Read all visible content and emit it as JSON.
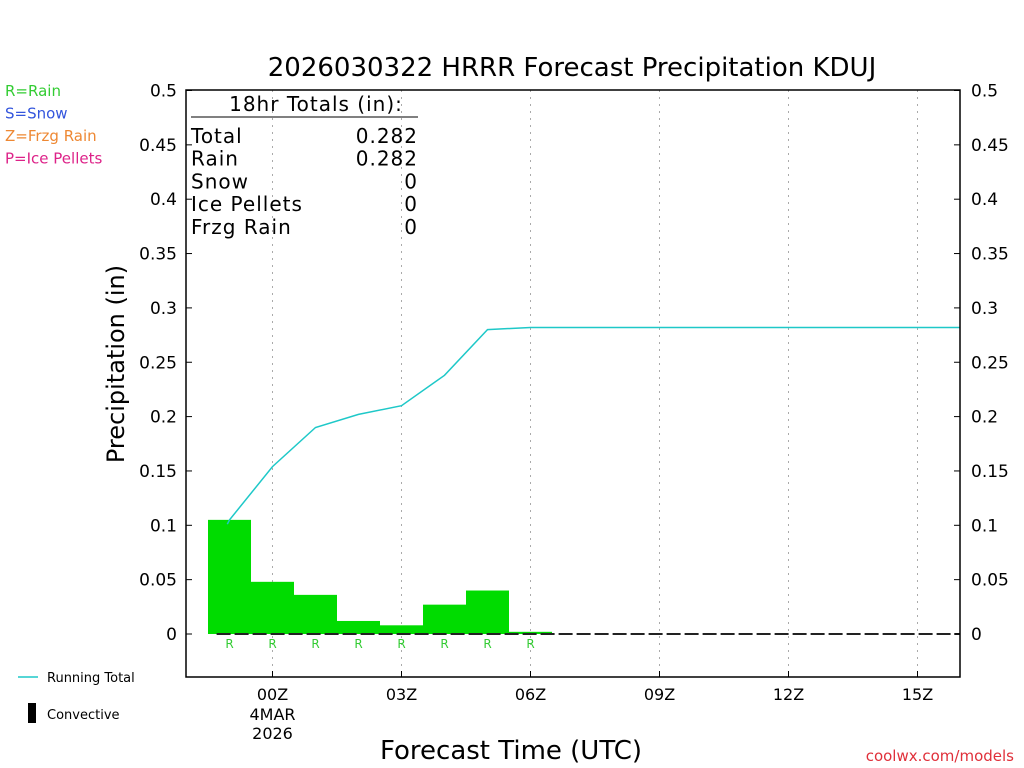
{
  "chart_data": {
    "type": "bar",
    "title": "2026030322 HRRR Forecast Precipitation KDUJ",
    "xlabel": "Forecast Time (UTC)",
    "ylabel": "Precipitation (in)",
    "ylim": [
      -0.04,
      0.5
    ],
    "yticks": [
      0,
      0.05,
      0.1,
      0.15,
      0.2,
      0.25,
      0.3,
      0.35,
      0.4,
      0.45,
      0.5
    ],
    "ytick_labels": [
      "0",
      "0.05",
      "0.1",
      "0.15",
      "0.2",
      "0.25",
      "0.3",
      "0.35",
      "0.4",
      "0.45",
      "0.5"
    ],
    "xlim_hours": [
      -2,
      16
    ],
    "xticks": [
      {
        "hour": 0,
        "label": "00Z",
        "sub1": "4MAR",
        "sub2": "2026"
      },
      {
        "hour": 3,
        "label": "03Z",
        "sub1": "",
        "sub2": ""
      },
      {
        "hour": 6,
        "label": "06Z",
        "sub1": "",
        "sub2": ""
      },
      {
        "hour": 9,
        "label": "09Z",
        "sub1": "",
        "sub2": ""
      },
      {
        "hour": 12,
        "label": "12Z",
        "sub1": "",
        "sub2": ""
      },
      {
        "hour": 15,
        "label": "15Z",
        "sub1": "",
        "sub2": ""
      }
    ],
    "bars": [
      {
        "start": -1.5,
        "end": -0.5,
        "value": 0.105,
        "type": "R"
      },
      {
        "start": -0.5,
        "end": 0.5,
        "value": 0.048,
        "type": "R"
      },
      {
        "start": 0.5,
        "end": 1.5,
        "value": 0.036,
        "type": "R"
      },
      {
        "start": 1.5,
        "end": 2.5,
        "value": 0.012,
        "type": "R"
      },
      {
        "start": 2.5,
        "end": 3.5,
        "value": 0.008,
        "type": "R"
      },
      {
        "start": 3.5,
        "end": 4.5,
        "value": 0.027,
        "type": "R"
      },
      {
        "start": 4.5,
        "end": 5.5,
        "value": 0.04,
        "type": "R"
      },
      {
        "start": 5.5,
        "end": 6.5,
        "value": 0.002,
        "type": "R"
      }
    ],
    "running_total": {
      "name": "Running Total",
      "x": [
        -1,
        0,
        1,
        2,
        3,
        4,
        5,
        6,
        7,
        8,
        9,
        10,
        11,
        12,
        13,
        14,
        15,
        16
      ],
      "y": [
        0.105,
        0.154,
        0.19,
        0.202,
        0.21,
        0.238,
        0.28,
        0.282,
        0.282,
        0.282,
        0.282,
        0.282,
        0.282,
        0.282,
        0.282,
        0.282,
        0.282,
        0.282
      ]
    },
    "totals_box": {
      "heading": "18hr Totals (in):",
      "rows": [
        {
          "label": "Total",
          "value": "0.282"
        },
        {
          "label": "Rain",
          "value": "0.282"
        },
        {
          "label": "Snow",
          "value": "0"
        },
        {
          "label": "Ice Pellets",
          "value": "0"
        },
        {
          "label": "Frzg Rain",
          "value": "0"
        }
      ]
    },
    "type_legend": [
      {
        "text": "R=Rain",
        "color": "#33cc33"
      },
      {
        "text": "S=Snow",
        "color": "#3355dd"
      },
      {
        "text": "Z=Frzg Rain",
        "color": "#ee8833"
      },
      {
        "text": "P=Ice Pellets",
        "color": "#dd2288"
      }
    ],
    "bottom_legend": [
      {
        "text": "Running Total",
        "kind": "line",
        "color": "#1ec8c8"
      },
      {
        "text": "Convective",
        "kind": "bar",
        "color": "#000000"
      }
    ],
    "colors": {
      "bar": "#00dc00",
      "line": "#1ec8c8",
      "grid": "#aaaaaa",
      "rain_label": "#33cc33"
    },
    "grid": "vertical dotted",
    "credit": "coolwx.com/models"
  }
}
